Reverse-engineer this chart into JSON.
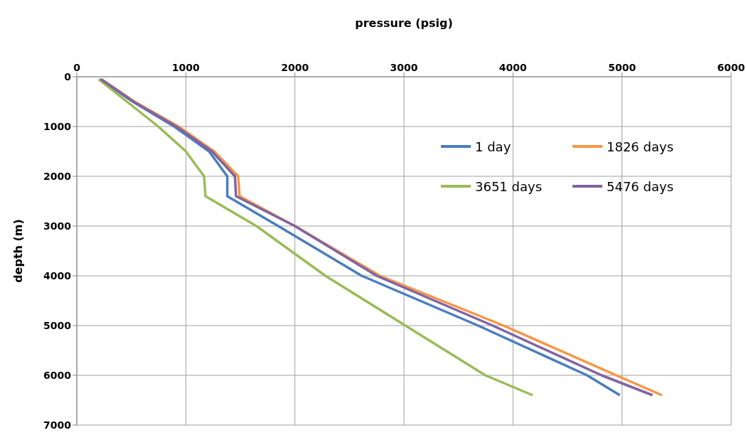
{
  "chart_data": {
    "type": "line",
    "xlabel": "pressure (psig)",
    "ylabel": "depth (m)",
    "xlim": [
      0,
      6000
    ],
    "xticks": [
      0,
      1000,
      2000,
      3000,
      4000,
      5000,
      6000
    ],
    "ylim": [
      7000,
      0
    ],
    "yticks": [
      0,
      1000,
      2000,
      3000,
      4000,
      5000,
      6000,
      7000
    ],
    "grid": true,
    "legend": "top right",
    "line_style": "solid",
    "series": [
      {
        "name": "1 day",
        "color": "#4a7ebb",
        "x": [
          213,
          513,
          893,
          1213,
          1380,
          1380,
          1847,
          2613,
          3680,
          4680,
          4980
        ],
        "values": [
          50,
          500,
          1000,
          1500,
          2000,
          2400,
          3000,
          4000,
          5000,
          6000,
          6400
        ]
      },
      {
        "name": "1826 days",
        "color": "#f79646",
        "x": [
          227,
          530,
          933,
          1260,
          1480,
          1493,
          2000,
          2780,
          3913,
          4947,
          5367
        ],
        "values": [
          50,
          500,
          1000,
          1500,
          2000,
          2400,
          3000,
          4000,
          5000,
          6000,
          6400
        ]
      },
      {
        "name": "3651 days",
        "color": "#9bbb59",
        "x": [
          200,
          460,
          747,
          1000,
          1167,
          1180,
          1647,
          2280,
          3013,
          3747,
          4180
        ],
        "values": [
          50,
          500,
          1000,
          1500,
          2000,
          2400,
          3000,
          4000,
          5000,
          6000,
          6400
        ]
      },
      {
        "name": "5476 days",
        "color": "#8064a2",
        "x": [
          220,
          520,
          913,
          1240,
          1450,
          1460,
          2000,
          2750,
          3813,
          4813,
          5280
        ],
        "values": [
          50,
          500,
          1000,
          1500,
          2000,
          2400,
          3000,
          4000,
          5000,
          6000,
          6400
        ]
      }
    ]
  }
}
